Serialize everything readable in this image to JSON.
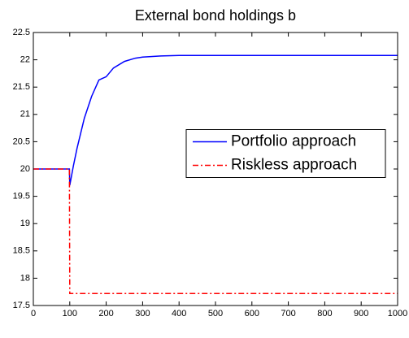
{
  "chart_data": {
    "type": "line",
    "title": "External bond holdings b",
    "xlim": [
      0,
      1000
    ],
    "xticks": [
      0,
      100,
      200,
      300,
      400,
      500,
      600,
      700,
      800,
      900,
      1000
    ],
    "ylim": [
      17.5,
      22.5
    ],
    "yticks": [
      17.5,
      18,
      18.5,
      19,
      19.5,
      20,
      20.5,
      21,
      21.5,
      22,
      22.5
    ],
    "legend": "east",
    "series": [
      {
        "name": "Portfolio approach",
        "color": "#0000ff",
        "style": "solid",
        "x": [
          0,
          99,
          100,
          110,
          120,
          140,
          160,
          180,
          200,
          220,
          250,
          280,
          300,
          350,
          400,
          500,
          600,
          700,
          800,
          900,
          1000
        ],
        "values": [
          20,
          20,
          19.7,
          20.06,
          20.38,
          20.93,
          21.33,
          21.63,
          21.69,
          21.85,
          21.97,
          22.03,
          22.05,
          22.07,
          22.08,
          22.08,
          22.08,
          22.08,
          22.08,
          22.08,
          22.08
        ]
      },
      {
        "name": "Riskless approach",
        "color": "#ff0000",
        "style": "dashdot",
        "x": [
          0,
          99,
          100,
          1000
        ],
        "values": [
          20,
          20,
          17.72,
          17.72
        ]
      }
    ]
  }
}
